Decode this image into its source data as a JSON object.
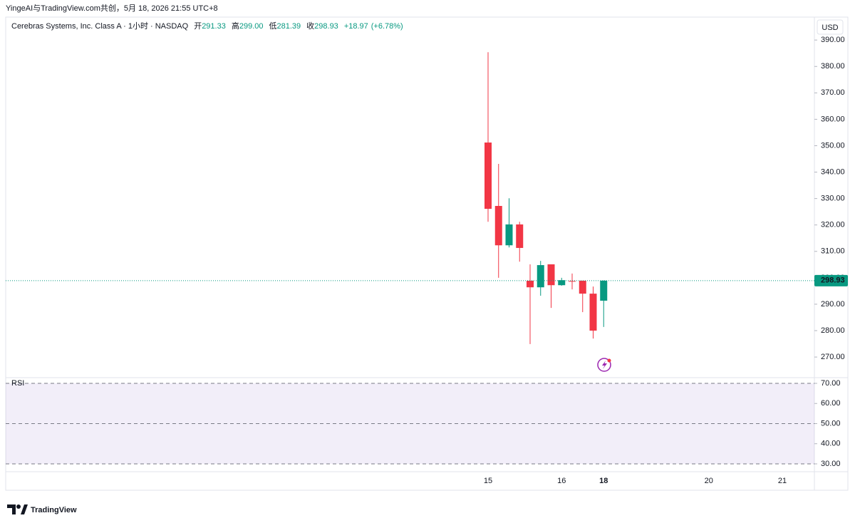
{
  "header": {
    "caption": "YingeAI与TradingView.com共创，5月 18, 2026 21:55 UTC+8"
  },
  "chart_data": {
    "type": "candlestick",
    "title": "Cerebras Systems, Inc. Class A · 1小时 · NASDAQ",
    "legend": {
      "open_label": "开",
      "open": 291.33,
      "high_label": "高",
      "high": {
        "value": 299,
        "label": "299.00"
      },
      "low_label": "低",
      "low": 281.39,
      "close_label": "收",
      "close": 298.93,
      "change": {
        "value": 18.97,
        "label": "+18.97"
      },
      "change_pct": {
        "value": 6.78,
        "label": "(+6.78%)"
      }
    },
    "currency": "USD",
    "categories": [
      "15",
      null,
      null,
      null,
      null,
      null,
      null,
      "16",
      null,
      null,
      null,
      "18",
      null,
      null,
      null,
      null,
      null,
      null,
      null,
      null,
      null,
      "20",
      null,
      null,
      null,
      null,
      null,
      null,
      "21"
    ],
    "open": [
      351.2,
      327.2,
      312.3,
      320.2,
      298.9,
      296.4,
      305.1,
      297.2,
      298.8,
      298.9,
      294.0,
      291.33,
      null,
      null,
      null,
      null,
      null,
      null,
      null,
      null,
      null,
      null,
      null,
      null,
      null,
      null,
      null,
      null,
      null
    ],
    "high": [
      385.4,
      343.1,
      330.1,
      321.2,
      305.1,
      306.4,
      305.1,
      300.0,
      301.6,
      298.9,
      296.7,
      299.0,
      null,
      null,
      null,
      null,
      null,
      null,
      null,
      null,
      null,
      null,
      null,
      null,
      null,
      null,
      null,
      null,
      null
    ],
    "low": [
      321.2,
      300.0,
      311.5,
      306.1,
      274.9,
      293.2,
      288.6,
      297.0,
      295.6,
      287.0,
      277.0,
      281.39,
      null,
      null,
      null,
      null,
      null,
      null,
      null,
      null,
      null,
      null,
      null,
      null,
      null,
      null,
      null,
      null,
      null
    ],
    "close": [
      326.1,
      312.3,
      320.2,
      311.3,
      296.4,
      304.8,
      297.2,
      299.1,
      298.6,
      294.0,
      280.0,
      298.93,
      null,
      null,
      null,
      null,
      null,
      null,
      null,
      null,
      null,
      null,
      null,
      null,
      null,
      null,
      null,
      null,
      null
    ],
    "up_color": "#089981",
    "down_color": "#f23645",
    "ylim": [
      262.2,
      397.6
    ],
    "yticks": [
      {
        "value": 270,
        "label": "270.00"
      },
      {
        "value": 280,
        "label": "280.00"
      },
      {
        "value": 290,
        "label": "290.00"
      },
      {
        "value": 300,
        "label": "300.00"
      },
      {
        "value": 310,
        "label": "310.00"
      },
      {
        "value": 320,
        "label": "320.00"
      },
      {
        "value": 330,
        "label": "330.00"
      },
      {
        "value": 340,
        "label": "340.00"
      },
      {
        "value": 350,
        "label": "350.00"
      },
      {
        "value": 360,
        "label": "360.00"
      },
      {
        "value": 370,
        "label": "370.00"
      },
      {
        "value": 380,
        "label": "380.00"
      },
      {
        "value": 390,
        "label": "390.00"
      }
    ],
    "last_price": 298.93,
    "indicator": {
      "name": "RSI",
      "ylim": [
        26.1,
        72.83
      ],
      "yticks": [
        {
          "value": 30,
          "label": "30.00"
        },
        {
          "value": 40,
          "label": "40.00"
        },
        {
          "value": 50,
          "label": "50.00"
        },
        {
          "value": 60,
          "label": "60.00"
        },
        {
          "value": 70,
          "label": "70.00"
        }
      ],
      "dashed": [
        30,
        50,
        70
      ]
    },
    "brand": "TradingView"
  }
}
